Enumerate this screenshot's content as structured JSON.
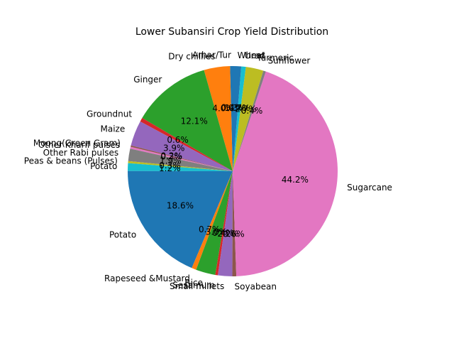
{
  "chart_data": {
    "type": "pie",
    "title": "Lower Subansiri Crop Yield Distribution",
    "xlabel": "",
    "ylabel": "",
    "start_angle_deg": 90,
    "direction": "counterclockwise",
    "slices": [
      {
        "label": "Arhar/Tur",
        "value": 0.4,
        "pct_label": "0.4%",
        "color": "#1f77b4"
      },
      {
        "label": "Dry chillies",
        "value": 4.0,
        "pct_label": "4.0%",
        "color": "#ff7f0e"
      },
      {
        "label": "Ginger",
        "value": 12.1,
        "pct_label": "12.1%",
        "color": "#2ca02c"
      },
      {
        "label": "Groundnut",
        "value": 0.6,
        "pct_label": "0.6%",
        "color": "#d62728"
      },
      {
        "label": "Maize",
        "value": 3.9,
        "pct_label": "3.9%",
        "color": "#9467bd"
      },
      {
        "label": "Moong(Green Gram)",
        "value": 0.2,
        "pct_label": "0.2%",
        "color": "#8c564b"
      },
      {
        "label": "Other Kharif pulses",
        "value": 0.3,
        "pct_label": "0.3%",
        "color": "#e377c2"
      },
      {
        "label": "Other Rabi pulses",
        "value": 1.9,
        "pct_label": "1.9%",
        "color": "#7f7f7f"
      },
      {
        "label": "Peas & beans (Pulses)",
        "value": 0.3,
        "pct_label": "0.3%",
        "color": "#bcbd22"
      },
      {
        "label": "Potato",
        "value": 1.2,
        "pct_label": "1.2%",
        "color": "#17becf"
      },
      {
        "label": "Potato",
        "value": 18.6,
        "pct_label": "18.6%",
        "color": "#1f77b4"
      },
      {
        "label": "Rapeseed &Mustard",
        "value": 0.7,
        "pct_label": "0.7%",
        "color": "#ff7f0e"
      },
      {
        "label": "Rice",
        "value": 3.0,
        "pct_label": "3.0%",
        "color": "#2ca02c"
      },
      {
        "label": "Sesamum",
        "value": 0.4,
        "pct_label": "0.4%",
        "color": "#d62728"
      },
      {
        "label": "Small millets",
        "value": 2.2,
        "pct_label": "2.2%",
        "color": "#9467bd"
      },
      {
        "label": "Soyabean",
        "value": 0.6,
        "pct_label": "0.6%",
        "color": "#8c564b"
      },
      {
        "label": "Sugarcane",
        "value": 44.2,
        "pct_label": "44.2%",
        "color": "#e377c2"
      },
      {
        "label": "Sunflower",
        "value": 0.4,
        "pct_label": "0.4%",
        "color": "#7f7f7f"
      },
      {
        "label": "Turmeric",
        "value": 2.7,
        "pct_label": "2.7%",
        "color": "#bcbd22"
      },
      {
        "label": "Urad",
        "value": 0.7,
        "pct_label": "0.7%",
        "color": "#17becf"
      },
      {
        "label": "Wheat",
        "value": 1.3,
        "pct_label": "1.3%",
        "color": "#1f77b4"
      }
    ]
  }
}
